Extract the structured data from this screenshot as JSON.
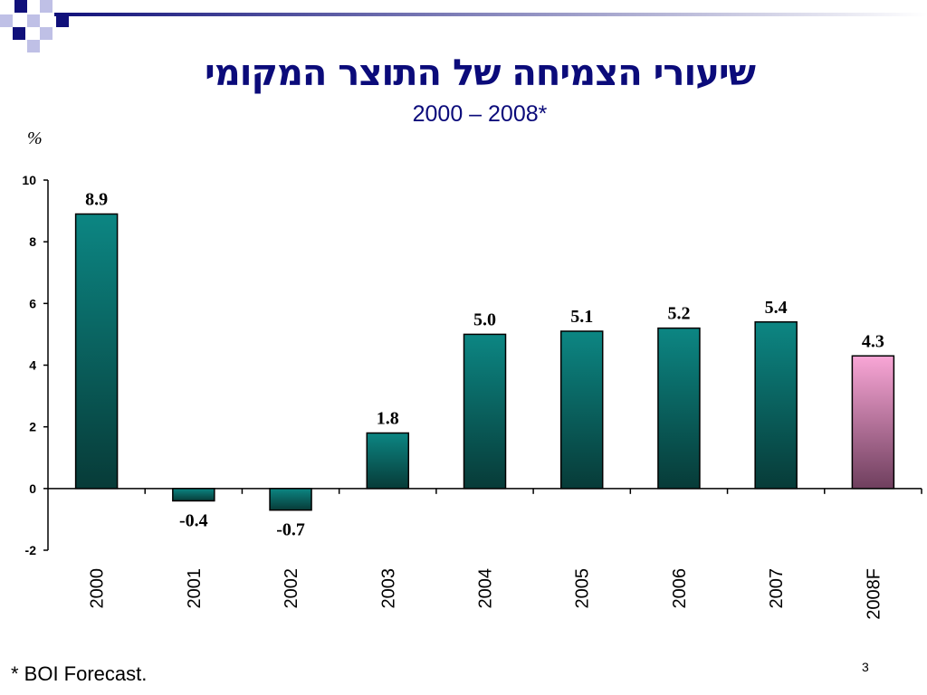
{
  "title": "שיעורי הצמיחה של התוצר המקומי",
  "subtitle": "2000 – 2008*",
  "unit_label": "%",
  "footnote": "* BOI Forecast.",
  "page_number": "3",
  "colors": {
    "title": "#0b0b7a",
    "bar_top": "#0c8683",
    "bar_bottom": "#073b38",
    "forecast_top": "#f9a6d6",
    "forecast_bottom": "#6f3f5e",
    "decoration": "#10107a"
  },
  "chart_data": {
    "type": "bar",
    "categories": [
      "2000",
      "2001",
      "2002",
      "2003",
      "2004",
      "2005",
      "2006",
      "2007",
      "2008F"
    ],
    "values": [
      8.9,
      -0.4,
      -0.7,
      1.8,
      5.0,
      5.1,
      5.2,
      5.4,
      4.3
    ],
    "value_labels": [
      "8.9",
      "-0.4",
      "-0.7",
      "1.8",
      "5.0",
      "5.1",
      "5.2",
      "5.4",
      "4.3"
    ],
    "forecast_category": "2008F",
    "ylim": [
      -2,
      10
    ],
    "yticks": [
      -2,
      0,
      2,
      4,
      6,
      8,
      10
    ],
    "grid": false
  }
}
